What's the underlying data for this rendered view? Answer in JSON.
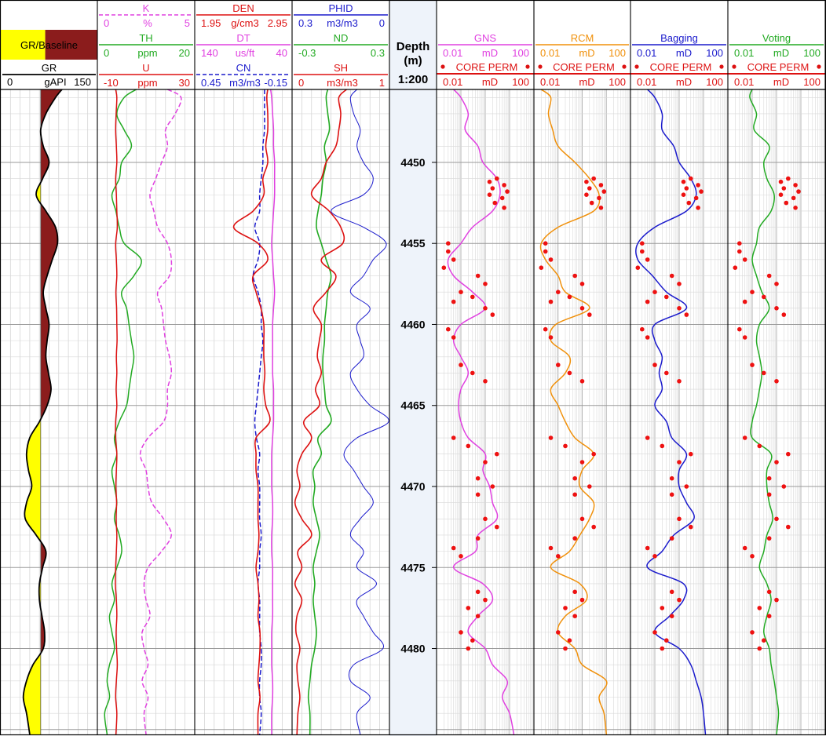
{
  "depth_header": {
    "line1": "Depth",
    "line2": "(m)",
    "scale": "1:200"
  },
  "depth_ticks": [
    "4450",
    "4455",
    "4460",
    "4465",
    "4470",
    "4475",
    "4480"
  ],
  "tracks": [
    {
      "id": "gr",
      "headers": [
        {
          "name": "GR/Baseline",
          "color": "#000000",
          "style": "fill"
        },
        {
          "name": "GR",
          "min": "0",
          "unit": "gAPI",
          "max": "150",
          "color": "#000000",
          "style": "solid"
        }
      ]
    },
    {
      "id": "spectral",
      "headers": [
        {
          "name": "K",
          "min": "0",
          "unit": "%",
          "max": "5",
          "color": "#e040e0",
          "style": "dashed"
        },
        {
          "name": "TH",
          "min": "0",
          "unit": "ppm",
          "max": "20",
          "color": "#22aa22",
          "style": "solid"
        },
        {
          "name": "U",
          "min": "-10",
          "unit": "ppm",
          "max": "30",
          "color": "#dd1111",
          "style": "solid"
        }
      ]
    },
    {
      "id": "porosity_logs",
      "headers": [
        {
          "name": "DEN",
          "min": "1.95",
          "unit": "g/cm3",
          "max": "2.95",
          "color": "#dd1111",
          "style": "solid"
        },
        {
          "name": "DT",
          "min": "140",
          "unit": "us/ft",
          "max": "40",
          "color": "#e040e0",
          "style": "solid"
        },
        {
          "name": "CN",
          "min": "0.45",
          "unit": "m3/m3",
          "max": "-0.15",
          "color": "#1a1acc",
          "style": "dashed"
        }
      ]
    },
    {
      "id": "computed",
      "headers": [
        {
          "name": "PHID",
          "min": "0.3",
          "unit": "m3/m3",
          "max": "0",
          "color": "#1a1acc",
          "style": "solid"
        },
        {
          "name": "ND",
          "min": "-0.3",
          "unit": "",
          "max": "0.3",
          "color": "#22aa22",
          "style": "solid"
        },
        {
          "name": "SH",
          "min": "0",
          "unit": "m3/m3",
          "max": "1",
          "color": "#dd1111",
          "style": "solid"
        }
      ]
    },
    {
      "id": "gns",
      "model": "GNS",
      "model_color": "#e040e0",
      "headers": [
        {
          "name": "GNS",
          "min": "0.01",
          "unit": "mD",
          "max": "100",
          "color": "#e040e0",
          "style": "solid"
        },
        {
          "name": "CORE PERM",
          "color": "#dd1111",
          "style": "dots"
        },
        {
          "name": "",
          "min": "0.01",
          "unit": "mD",
          "max": "100",
          "color": "#dd1111",
          "style": "solid"
        }
      ]
    },
    {
      "id": "rcm",
      "model": "RCM",
      "model_color": "#f0900a",
      "headers": [
        {
          "name": "RCM",
          "min": "0.01",
          "unit": "mD",
          "max": "100",
          "color": "#f0900a",
          "style": "solid"
        },
        {
          "name": "CORE PERM",
          "color": "#dd1111",
          "style": "dots"
        },
        {
          "name": "",
          "min": "0.01",
          "unit": "mD",
          "max": "100",
          "color": "#dd1111",
          "style": "solid"
        }
      ]
    },
    {
      "id": "bagging",
      "model": "Bagging",
      "model_color": "#1a1acc",
      "headers": [
        {
          "name": "Bagging",
          "min": "0.01",
          "unit": "mD",
          "max": "100",
          "color": "#1a1acc",
          "style": "solid"
        },
        {
          "name": "CORE PERM",
          "color": "#dd1111",
          "style": "dots"
        },
        {
          "name": "",
          "min": "0.01",
          "unit": "mD",
          "max": "100",
          "color": "#dd1111",
          "style": "solid"
        }
      ]
    },
    {
      "id": "voting",
      "model": "Voting",
      "model_color": "#22aa22",
      "headers": [
        {
          "name": "Voting",
          "min": "0.01",
          "unit": "mD",
          "max": "100",
          "color": "#22aa22",
          "style": "solid"
        },
        {
          "name": "CORE PERM",
          "color": "#dd1111",
          "style": "dots"
        },
        {
          "name": "",
          "min": "0.01",
          "unit": "mD",
          "max": "100",
          "color": "#dd1111",
          "style": "solid"
        }
      ]
    }
  ],
  "chart_data": {
    "type": "line",
    "y_axis": {
      "label": "Depth (m)",
      "range": [
        4445.5,
        4485.3
      ],
      "ticks": [
        4450,
        4455,
        4460,
        4465,
        4470,
        4475,
        4480
      ],
      "reversed": true
    },
    "depths": [
      4445.5,
      4446,
      4447,
      4448,
      4449,
      4450,
      4451,
      4452,
      4453,
      4454,
      4455,
      4456,
      4457,
      4458,
      4459,
      4460,
      4461,
      4462,
      4463,
      4464,
      4465,
      4466,
      4467,
      4468,
      4469,
      4470,
      4471,
      4472,
      4473,
      4474,
      4475,
      4476,
      4477,
      4478,
      4479,
      4480,
      4481,
      4482,
      4483,
      4484,
      4485.3
    ],
    "gr_baseline": 62,
    "curves": {
      "GR": [
        95,
        85,
        70,
        62,
        66,
        75,
        65,
        55,
        70,
        85,
        88,
        80,
        72,
        66,
        70,
        75,
        72,
        70,
        74,
        78,
        72,
        60,
        45,
        40,
        43,
        48,
        40,
        38,
        55,
        70,
        65,
        60,
        60,
        64,
        68,
        66,
        50,
        40,
        35,
        40,
        45
      ],
      "K": [
        3.6,
        4.3,
        4.0,
        3.5,
        3.6,
        3.3,
        3.0,
        2.7,
        2.9,
        3.1,
        3.6,
        3.8,
        3.7,
        3.1,
        3.3,
        3.4,
        3.5,
        3.7,
        3.8,
        3.6,
        3.6,
        3.4,
        2.6,
        2.2,
        2.5,
        2.6,
        2.8,
        3.4,
        3.8,
        3.3,
        2.6,
        2.4,
        2.5,
        2.7,
        2.3,
        2.4,
        2.6,
        2.3,
        2.6,
        2.4,
        2.5
      ],
      "TH": [
        8.0,
        5.5,
        4.0,
        5.5,
        7.0,
        5.0,
        4.5,
        3.0,
        3.8,
        4.5,
        5.5,
        9.0,
        7.5,
        5.0,
        6.0,
        6.5,
        7.0,
        7.5,
        7.0,
        6.5,
        6.0,
        4.5,
        3.5,
        4.0,
        3.0,
        3.5,
        4.0,
        3.5,
        4.5,
        5.0,
        4.0,
        3.0,
        3.5,
        2.5,
        3.0,
        3.5,
        2.5,
        2.0,
        2.5,
        1.5,
        2.0
      ],
      "U": [
        -2.5,
        -2.0,
        -2.3,
        -2.5,
        -2.2,
        -2.0,
        -2.5,
        -2.2,
        -2.0,
        -1.8,
        -2.5,
        -2.2,
        -2.0,
        -2.4,
        -2.1,
        -2.0,
        -1.9,
        -2.2,
        -2.0,
        -2.3,
        -2.0,
        -2.5,
        -2.5,
        -2.0,
        -2.2,
        -2.4,
        -2.1,
        -2.3,
        -2.0,
        -2.2,
        -2.5,
        -2.6,
        -2.2,
        -2.0,
        -2.3,
        -2.1,
        -1.8,
        -2.2,
        -2.5,
        -2.0,
        -2.4
      ],
      "DEN": [
        2.7,
        2.69,
        2.7,
        2.7,
        2.68,
        2.7,
        2.65,
        2.66,
        2.55,
        2.35,
        2.6,
        2.7,
        2.55,
        2.58,
        2.63,
        2.66,
        2.66,
        2.66,
        2.67,
        2.66,
        2.68,
        2.72,
        2.58,
        2.58,
        2.58,
        2.6,
        2.6,
        2.6,
        2.61,
        2.6,
        2.58,
        2.6,
        2.61,
        2.6,
        2.62,
        2.62,
        2.61,
        2.6,
        2.62,
        2.6,
        2.6
      ],
      "DT": [
        62,
        61,
        60,
        59,
        59,
        58,
        58,
        58,
        59,
        60,
        61,
        60,
        59,
        58,
        59,
        60,
        60,
        60,
        60,
        59,
        59,
        59,
        60,
        61,
        61,
        61,
        60,
        60,
        61,
        61,
        60,
        60,
        60,
        60,
        61,
        61,
        61,
        60,
        60,
        61,
        61
      ],
      "CN": [
        0.02,
        0.02,
        0.02,
        0.02,
        0.03,
        0.03,
        0.04,
        0.05,
        0.05,
        0.08,
        0.05,
        0.06,
        0.09,
        0.06,
        0.04,
        0.04,
        0.03,
        0.04,
        0.05,
        0.06,
        0.07,
        0.08,
        0.07,
        0.05,
        0.06,
        0.05,
        0.05,
        0.05,
        0.04,
        0.05,
        0.05,
        0.06,
        0.05,
        0.05,
        0.05,
        0.04,
        0.04,
        0.05,
        0.05,
        0.04,
        0.05
      ],
      "PHID": [
        0.1,
        0.12,
        0.11,
        0.09,
        0.1,
        0.08,
        0.05,
        0.08,
        0.18,
        0.08,
        0.01,
        0.05,
        0.08,
        0.12,
        0.06,
        0.1,
        0.09,
        0.08,
        0.12,
        0.1,
        0.06,
        0.0,
        0.1,
        0.14,
        0.11,
        0.08,
        0.05,
        0.09,
        0.12,
        0.08,
        0.1,
        0.04,
        0.1,
        0.08,
        0.05,
        0.02,
        0.11,
        0.12,
        0.06,
        0.1,
        0.09
      ],
      "ND": [
        -0.08,
        -0.09,
        -0.08,
        -0.07,
        -0.1,
        -0.09,
        -0.11,
        -0.12,
        -0.14,
        -0.15,
        -0.12,
        -0.09,
        -0.06,
        -0.08,
        -0.09,
        -0.1,
        -0.1,
        -0.11,
        -0.11,
        -0.1,
        -0.09,
        -0.06,
        -0.14,
        -0.12,
        -0.17,
        -0.16,
        -0.17,
        -0.15,
        -0.13,
        -0.15,
        -0.17,
        -0.16,
        -0.17,
        -0.16,
        -0.15,
        -0.16,
        -0.18,
        -0.19,
        -0.2,
        -0.19,
        -0.19
      ],
      "SH": [
        0.56,
        0.48,
        0.5,
        0.48,
        0.45,
        0.35,
        0.3,
        0.2,
        0.38,
        0.5,
        0.52,
        0.3,
        0.45,
        0.35,
        0.22,
        0.3,
        0.28,
        0.26,
        0.3,
        0.24,
        0.28,
        0.12,
        0.2,
        0.1,
        0.05,
        0.08,
        0.03,
        0.1,
        0.2,
        0.06,
        0.1,
        0.03,
        0.1,
        0.05,
        0.04,
        0.08,
        0.05,
        0.06,
        0.08,
        0.06,
        0.05
      ],
      "GNS": [
        0.05,
        0.1,
        0.2,
        0.15,
        0.5,
        0.8,
        3.0,
        4.0,
        2.0,
        0.3,
        0.1,
        0.03,
        0.05,
        0.3,
        1.0,
        0.1,
        0.05,
        0.1,
        0.2,
        0.1,
        0.08,
        0.1,
        0.2,
        1.0,
        0.8,
        1.5,
        2.0,
        3.0,
        0.5,
        0.4,
        0.05,
        0.8,
        2.0,
        0.5,
        0.2,
        1.0,
        2.0,
        8.0,
        5.0,
        10.0,
        15.0
      ],
      "RCM": [
        0.02,
        0.05,
        0.04,
        0.06,
        0.1,
        0.5,
        2.0,
        5.0,
        3.0,
        0.1,
        0.02,
        0.03,
        0.1,
        0.2,
        2.0,
        0.08,
        0.05,
        0.3,
        0.2,
        0.05,
        0.1,
        0.2,
        0.5,
        3.0,
        1.0,
        0.8,
        3.0,
        2.0,
        0.8,
        0.3,
        0.05,
        0.8,
        1.5,
        0.2,
        0.1,
        0.5,
        1.0,
        10.0,
        5.0,
        8.0,
        10.0
      ],
      "Bagging": [
        0.05,
        0.1,
        0.2,
        0.2,
        0.6,
        1.0,
        3.0,
        5.0,
        2.0,
        0.1,
        0.02,
        0.02,
        0.08,
        0.3,
        2.0,
        0.1,
        0.1,
        0.2,
        0.15,
        0.2,
        0.1,
        0.3,
        0.5,
        2.0,
        1.0,
        1.0,
        2.0,
        4.0,
        0.6,
        0.2,
        0.05,
        1.5,
        1.5,
        0.4,
        0.1,
        1.0,
        3.0,
        5.0,
        8.0,
        10.0,
        12.0
      ],
      "Voting": [
        0.1,
        0.08,
        0.15,
        0.12,
        0.5,
        0.3,
        0.4,
        0.8,
        0.6,
        0.2,
        0.15,
        0.1,
        0.15,
        0.25,
        0.5,
        0.2,
        0.15,
        0.2,
        0.25,
        0.2,
        0.15,
        0.1,
        0.1,
        0.6,
        0.4,
        0.4,
        0.5,
        0.7,
        0.4,
        0.3,
        0.2,
        0.4,
        0.6,
        0.4,
        0.3,
        0.5,
        0.6,
        0.8,
        1.0,
        1.2,
        1.0
      ]
    },
    "core_perm": {
      "depths": [
        4451.0,
        4451.2,
        4451.4,
        4451.6,
        4451.8,
        4452.0,
        4452.2,
        4452.5,
        4452.8,
        4455.0,
        4455.5,
        4456.0,
        4456.5,
        4457.0,
        4457.5,
        4458.0,
        4458.3,
        4458.6,
        4459.0,
        4459.4,
        4460.3,
        4460.8,
        4462.5,
        4463.0,
        4463.5,
        4467.0,
        4467.5,
        4468.0,
        4468.5,
        4469.5,
        4470.0,
        4470.5,
        4472.0,
        4472.5,
        4473.2,
        4473.8,
        4474.3,
        4476.5,
        4477.0,
        4477.5,
        4478.0,
        4479.0,
        4479.5,
        4480.0
      ],
      "values": [
        3.0,
        1.5,
        6.0,
        2.0,
        8.0,
        1.5,
        5.0,
        2.5,
        6.0,
        0.03,
        0.03,
        0.05,
        0.02,
        0.5,
        1.0,
        0.1,
        0.3,
        0.05,
        1.0,
        2.0,
        0.03,
        0.05,
        0.1,
        0.3,
        1.0,
        0.05,
        0.2,
        3.0,
        1.0,
        0.5,
        2.0,
        0.5,
        1.0,
        3.0,
        0.5,
        0.05,
        0.1,
        0.5,
        1.0,
        0.2,
        0.5,
        0.1,
        0.3,
        0.2
      ]
    }
  }
}
